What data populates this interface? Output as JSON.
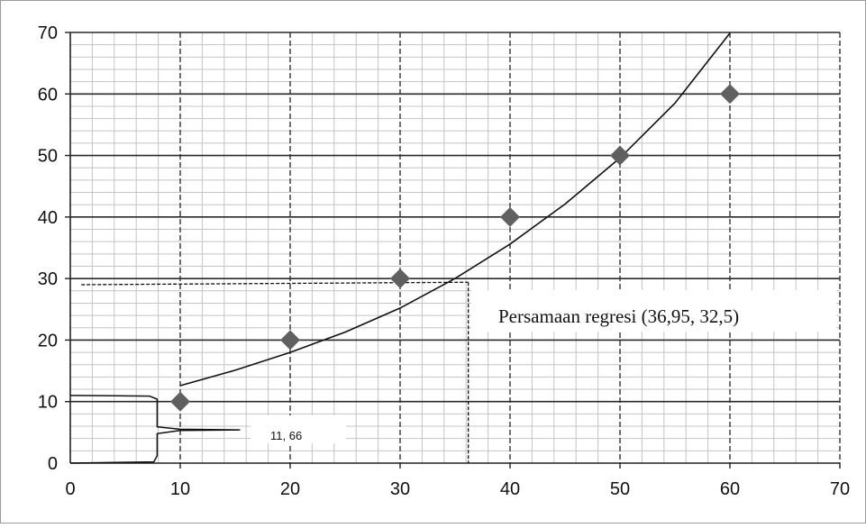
{
  "chart_data": {
    "type": "scatter",
    "title": "",
    "xlabel": "",
    "ylabel": "",
    "xlim": [
      0,
      70
    ],
    "ylim": [
      0,
      70
    ],
    "x_ticks": [
      "0",
      "10",
      "20",
      "30",
      "40",
      "50",
      "60",
      "70"
    ],
    "y_ticks": [
      "0",
      "10",
      "20",
      "30",
      "40",
      "50",
      "60",
      "70"
    ],
    "grid": true,
    "minor_grid": true,
    "series": [
      {
        "kind": "scatter",
        "marker": "diamond",
        "color": "#606060",
        "x": [
          10,
          20,
          30,
          40,
          50,
          60
        ],
        "y": [
          10,
          20,
          30,
          40,
          50,
          60
        ]
      },
      {
        "kind": "line",
        "color": "#111111",
        "x": [
          10,
          15,
          20,
          25,
          30,
          35,
          40,
          45,
          50,
          55,
          60
        ],
        "y": [
          12.6,
          15.1,
          18.0,
          21.3,
          25.2,
          30.0,
          35.6,
          42.1,
          49.6,
          58.5,
          69.9
        ]
      }
    ],
    "reference_lines": {
      "color": "#111111",
      "horizontal": {
        "y_start": 29,
        "y_end": 29.4,
        "x_from": 1,
        "x_to": 36.2
      },
      "vertical": {
        "x": 36.2,
        "y_from": 0,
        "y_to": 29.4
      }
    },
    "annotations": [
      {
        "text": "Persamaan regresi (36,95, 32,5)"
      },
      {
        "text": "11, 66"
      }
    ]
  }
}
